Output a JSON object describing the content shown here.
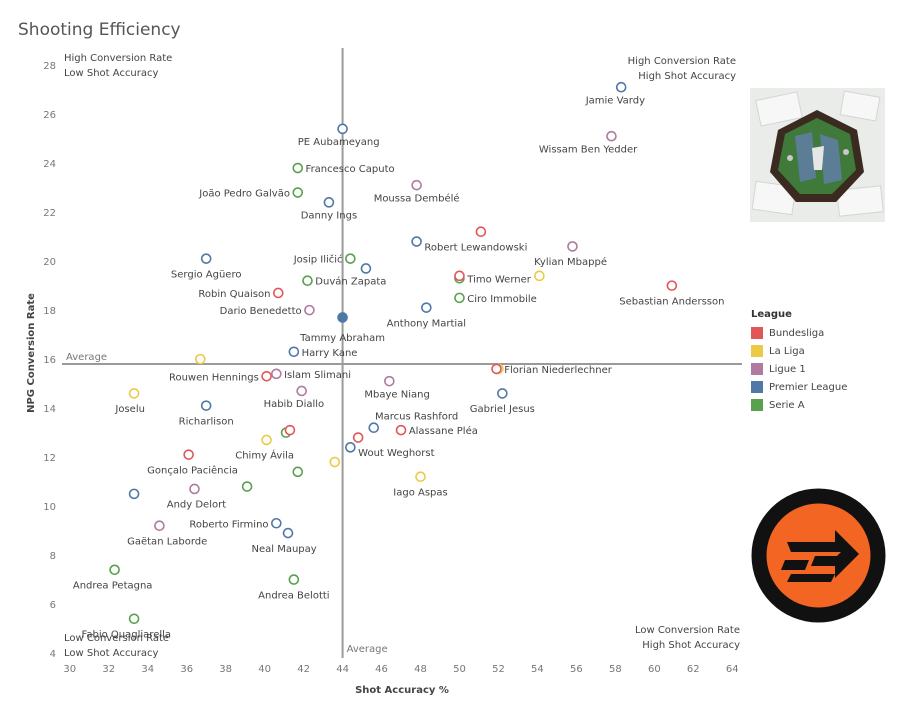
{
  "title": "Shooting Efficiency",
  "chart_data": {
    "type": "scatter",
    "title": "Shooting Efficiency",
    "xlabel": "Shot Accuracy %",
    "ylabel": "NPG Conversion Rate",
    "xlim": [
      29.6,
      64.5
    ],
    "ylim": [
      3.8,
      28.7
    ],
    "xticks": [
      30,
      32,
      34,
      36,
      38,
      40,
      42,
      44,
      46,
      48,
      50,
      52,
      54,
      56,
      58,
      60,
      62,
      64
    ],
    "yticks": [
      4,
      6,
      8,
      10,
      12,
      14,
      16,
      18,
      20,
      22,
      24,
      26,
      28
    ],
    "reference_lines": {
      "x_average": 44.0,
      "y_average": 15.8,
      "x_label": "Average",
      "y_label": "Average"
    },
    "quadrant_labels": {
      "top_left": [
        "High Conversion Rate",
        "Low Shot Accuracy"
      ],
      "top_right": [
        "High Conversion Rate",
        "High Shot Accuracy"
      ],
      "bottom_left": [
        "Low Conversion Rate",
        "Low Shot Accuracy"
      ],
      "bottom_right": [
        "Low Conversion Rate",
        "High Shot Accuracy"
      ]
    },
    "legend_title": "League",
    "leagues": [
      {
        "name": "Bundesliga",
        "color": "#e15759"
      },
      {
        "name": "La Liga",
        "color": "#edc948"
      },
      {
        "name": "Ligue 1",
        "color": "#b07aa1"
      },
      {
        "name": "Premier League",
        "color": "#4e79a7"
      },
      {
        "name": "Serie A",
        "color": "#59a14f"
      }
    ],
    "points": [
      {
        "name": "Jamie Vardy",
        "x": 58.3,
        "y": 27.1,
        "league": "Premier League",
        "label": "Jamie Vardy",
        "lx": 58.0,
        "ly": 26.6,
        "anchor": "middle"
      },
      {
        "name": "Wissam Ben Yedder",
        "x": 57.8,
        "y": 25.1,
        "league": "Ligue 1",
        "label": "Wissam Ben Yedder",
        "lx": 56.6,
        "ly": 24.6,
        "anchor": "middle"
      },
      {
        "name": "PE Aubameyang",
        "x": 44.0,
        "y": 25.4,
        "league": "Premier League",
        "label": "PE Aubameyang",
        "lx": 43.8,
        "ly": 24.9,
        "anchor": "middle"
      },
      {
        "name": "Francesco Caputo",
        "x": 41.7,
        "y": 23.8,
        "league": "Serie A",
        "label": "Francesco Caputo",
        "lx": 42.1,
        "ly": 23.8,
        "anchor": "start"
      },
      {
        "name": "Moussa Dembélé",
        "x": 47.8,
        "y": 23.1,
        "league": "Ligue 1",
        "label": "Moussa Dembélé",
        "lx": 47.8,
        "ly": 22.6,
        "anchor": "middle"
      },
      {
        "name": "João Pedro Galvão",
        "x": 41.7,
        "y": 22.8,
        "league": "Serie A",
        "label": "João Pedro Galvão",
        "lx": 41.3,
        "ly": 22.8,
        "anchor": "end"
      },
      {
        "name": "Danny Ings",
        "x": 43.3,
        "y": 22.4,
        "league": "Premier League",
        "label": "Danny Ings",
        "lx": 43.3,
        "ly": 21.9,
        "anchor": "middle"
      },
      {
        "name": "Robert Lewandowski (dot)",
        "x": 51.1,
        "y": 21.2,
        "league": "Bundesliga"
      },
      {
        "name": "Robert Lewandowski",
        "x": 47.8,
        "y": 20.8,
        "league": "Premier League",
        "label": "Robert Lewandowski",
        "lx": 48.2,
        "ly": 20.6,
        "anchor": "start"
      },
      {
        "name": "Kylian Mbappé",
        "x": 55.8,
        "y": 20.6,
        "league": "Ligue 1",
        "label": "Kylian Mbappé",
        "lx": 55.7,
        "ly": 20.0,
        "anchor": "middle"
      },
      {
        "name": "Sergio Agüero",
        "x": 37.0,
        "y": 20.1,
        "league": "Premier League",
        "label": "Sergio Agüero",
        "lx": 37.0,
        "ly": 19.5,
        "anchor": "middle"
      },
      {
        "name": "Josip Iličić",
        "x": 44.4,
        "y": 20.1,
        "league": "Serie A",
        "label": "Josip Iličić",
        "lx": 44.0,
        "ly": 20.1,
        "anchor": "end"
      },
      {
        "name": "Duván Zapata (blue)",
        "x": 45.2,
        "y": 19.7,
        "league": "Premier League"
      },
      {
        "name": "Timo Werner (green)",
        "x": 50.0,
        "y": 19.3,
        "league": "Serie A"
      },
      {
        "name": "Timo Werner",
        "x": 50.0,
        "y": 19.4,
        "league": "Bundesliga",
        "label": "Timo Werner",
        "lx": 50.4,
        "ly": 19.3,
        "anchor": "start"
      },
      {
        "name": "Timo Werner (yellow)",
        "x": 54.1,
        "y": 19.4,
        "league": "La Liga"
      },
      {
        "name": "Duván Zapata",
        "x": 42.2,
        "y": 19.2,
        "league": "Serie A",
        "label": "Duván Zapata",
        "lx": 42.6,
        "ly": 19.2,
        "anchor": "start"
      },
      {
        "name": "Sebastian Andersson",
        "x": 60.9,
        "y": 19.0,
        "league": "Bundesliga",
        "label": "Sebastian Andersson",
        "lx": 60.9,
        "ly": 18.4,
        "anchor": "middle"
      },
      {
        "name": "Robin Quaison",
        "x": 40.7,
        "y": 18.7,
        "league": "Bundesliga",
        "label": "Robin Quaison",
        "lx": 40.3,
        "ly": 18.7,
        "anchor": "end"
      },
      {
        "name": "Ciro Immobile",
        "x": 50.0,
        "y": 18.5,
        "league": "Serie A",
        "label": "Ciro Immobile",
        "lx": 50.4,
        "ly": 18.5,
        "anchor": "start"
      },
      {
        "name": "Anthony Martial",
        "x": 48.3,
        "y": 18.1,
        "league": "Premier League",
        "label": "Anthony Martial",
        "lx": 48.3,
        "ly": 17.5,
        "anchor": "middle"
      },
      {
        "name": "Dario Benedetto",
        "x": 42.3,
        "y": 18.0,
        "league": "Ligue 1",
        "label": "Dario Benedetto",
        "lx": 41.9,
        "ly": 18.0,
        "anchor": "end"
      },
      {
        "name": "Tammy Abraham",
        "x": 44.0,
        "y": 17.7,
        "league": "Premier League",
        "filled": true,
        "label": "Tammy Abraham",
        "lx": 44.0,
        "ly": 16.9,
        "anchor": "middle"
      },
      {
        "name": "Harry Kane",
        "x": 41.5,
        "y": 16.3,
        "league": "Premier League",
        "label": "Harry Kane",
        "lx": 41.9,
        "ly": 16.3,
        "anchor": "start"
      },
      {
        "name": "Rouwen Hennings (dot)",
        "x": 36.7,
        "y": 16.0,
        "league": "La Liga"
      },
      {
        "name": "Florian Niederlechner (yellow)",
        "x": 52.0,
        "y": 15.6,
        "league": "La Liga"
      },
      {
        "name": "Florian Niederlechner",
        "x": 51.9,
        "y": 15.6,
        "league": "Bundesliga",
        "label": "Florian Niederlechner",
        "lx": 52.3,
        "ly": 15.6,
        "anchor": "start"
      },
      {
        "name": "Rouwen Hennings",
        "x": 40.1,
        "y": 15.3,
        "league": "Bundesliga",
        "label": "Rouwen Hennings",
        "lx": 39.7,
        "ly": 15.3,
        "anchor": "end"
      },
      {
        "name": "Islam Slimani",
        "x": 40.6,
        "y": 15.4,
        "league": "Ligue 1",
        "label": "Islam Slimani",
        "lx": 41.0,
        "ly": 15.4,
        "anchor": "start"
      },
      {
        "name": "Mbaye Niang",
        "x": 46.4,
        "y": 15.1,
        "league": "Ligue 1",
        "label": "Mbaye Niang",
        "lx": 46.8,
        "ly": 14.6,
        "anchor": "middle"
      },
      {
        "name": "Habib Diallo",
        "x": 41.9,
        "y": 14.7,
        "league": "Ligue 1",
        "label": "Habib Diallo",
        "lx": 41.5,
        "ly": 14.2,
        "anchor": "middle"
      },
      {
        "name": "Joselu",
        "x": 33.3,
        "y": 14.6,
        "league": "La Liga",
        "label": "Joselu",
        "lx": 33.1,
        "ly": 14.0,
        "anchor": "middle"
      },
      {
        "name": "Gabriel Jesus",
        "x": 52.2,
        "y": 14.6,
        "league": "Premier League",
        "label": "Gabriel Jesus",
        "lx": 52.2,
        "ly": 14.0,
        "anchor": "middle"
      },
      {
        "name": "Richarlison",
        "x": 37.0,
        "y": 14.1,
        "league": "Premier League",
        "label": "Richarlison",
        "lx": 37.0,
        "ly": 13.5,
        "anchor": "middle"
      },
      {
        "name": "Marcus Rashford",
        "x": 45.6,
        "y": 13.2,
        "league": "Premier League",
        "label": "Marcus Rashford",
        "lx": 47.8,
        "ly": 13.7,
        "anchor": "middle"
      },
      {
        "name": "Alassane Pléa",
        "x": 47.0,
        "y": 13.1,
        "league": "Bundesliga",
        "label": "Alassane Pléa",
        "lx": 47.4,
        "ly": 13.1,
        "anchor": "start"
      },
      {
        "name": "Chimy Ávila (green)",
        "x": 41.1,
        "y": 13.0,
        "league": "Serie A"
      },
      {
        "name": "Chimy Ávila (red)",
        "x": 41.3,
        "y": 13.1,
        "league": "Bundesliga"
      },
      {
        "name": "Chimy Ávila",
        "x": 40.1,
        "y": 12.7,
        "league": "La Liga",
        "label": "Chimy Ávila",
        "lx": 40.0,
        "ly": 12.1,
        "anchor": "middle"
      },
      {
        "name": "Wout Weghorst (dot)",
        "x": 44.8,
        "y": 12.8,
        "league": "Bundesliga"
      },
      {
        "name": "Wout Weghorst",
        "x": 44.4,
        "y": 12.4,
        "league": "Premier League",
        "label": "Wout Weghorst",
        "lx": 44.8,
        "ly": 12.2,
        "anchor": "start"
      },
      {
        "name": "Gonçalo Paciência",
        "x": 36.1,
        "y": 12.1,
        "league": "Bundesliga",
        "label": "Gonçalo Paciência",
        "lx": 36.3,
        "ly": 11.5,
        "anchor": "middle"
      },
      {
        "name": "Iago Aspas (dot2)",
        "x": 43.6,
        "y": 11.8,
        "league": "La Liga"
      },
      {
        "name": "Serie A dot",
        "x": 41.7,
        "y": 11.4,
        "league": "Serie A"
      },
      {
        "name": "Iago Aspas",
        "x": 48.0,
        "y": 11.2,
        "league": "La Liga",
        "label": "Iago Aspas",
        "lx": 48.0,
        "ly": 10.6,
        "anchor": "middle"
      },
      {
        "name": "Serie A dot 2",
        "x": 39.1,
        "y": 10.8,
        "league": "Serie A"
      },
      {
        "name": "Andy Delort",
        "x": 36.4,
        "y": 10.7,
        "league": "Ligue 1",
        "label": "Andy Delort",
        "lx": 36.5,
        "ly": 10.1,
        "anchor": "middle"
      },
      {
        "name": "Premier League dot",
        "x": 33.3,
        "y": 10.5,
        "league": "Premier League"
      },
      {
        "name": "Roberto Firmino",
        "x": 40.6,
        "y": 9.3,
        "league": "Premier League",
        "label": "Roberto Firmino",
        "lx": 40.2,
        "ly": 9.3,
        "anchor": "end"
      },
      {
        "name": "Gaëtan Laborde",
        "x": 34.6,
        "y": 9.2,
        "league": "Ligue 1",
        "label": "Gaëtan Laborde",
        "lx": 35.0,
        "ly": 8.6,
        "anchor": "middle"
      },
      {
        "name": "Neal Maupay",
        "x": 41.2,
        "y": 8.9,
        "league": "Premier League",
        "label": "Neal Maupay",
        "lx": 41.0,
        "ly": 8.3,
        "anchor": "middle"
      },
      {
        "name": "Andrea Petagna",
        "x": 32.3,
        "y": 7.4,
        "league": "Serie A",
        "label": "Andrea Petagna",
        "lx": 32.2,
        "ly": 6.8,
        "anchor": "middle"
      },
      {
        "name": "Andrea Belotti",
        "x": 41.5,
        "y": 7.0,
        "league": "Serie A",
        "label": "Andrea Belotti",
        "lx": 41.5,
        "ly": 6.4,
        "anchor": "middle"
      },
      {
        "name": "Fabio Quagliarella",
        "x": 33.3,
        "y": 5.4,
        "league": "Serie A",
        "label": "Fabio Quagliarella",
        "lx": 32.9,
        "ly": 4.8,
        "anchor": "middle"
      }
    ]
  }
}
